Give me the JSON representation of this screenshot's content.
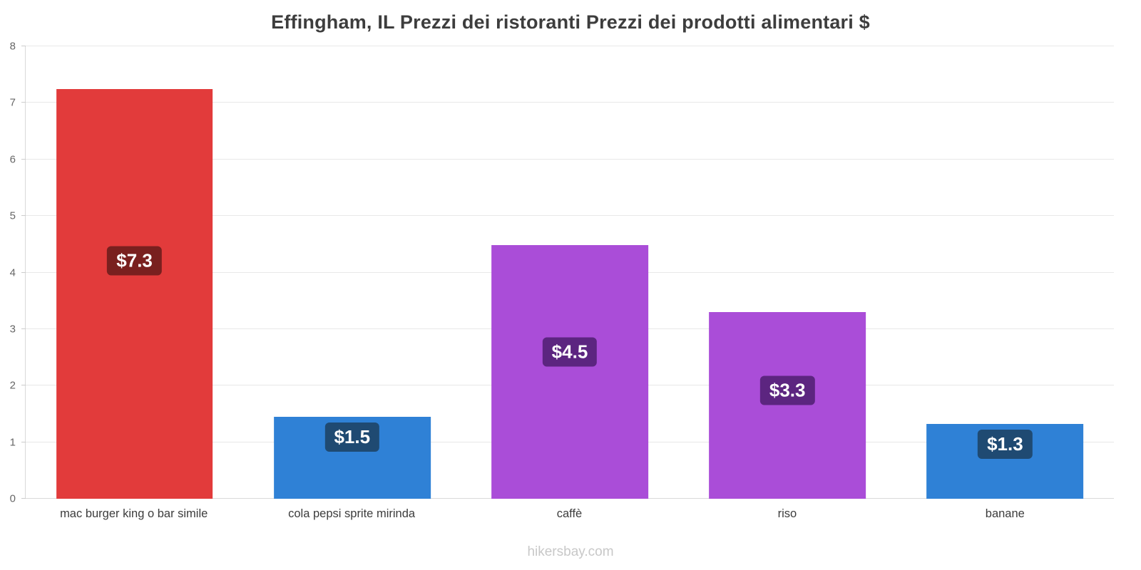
{
  "chart_data": {
    "type": "bar",
    "title": "Effingham, IL Prezzi dei ristoranti Prezzi dei prodotti alimentari $",
    "categories": [
      "mac burger king o bar simile",
      "cola pepsi sprite mirinda",
      "caffè",
      "riso",
      "banane"
    ],
    "values": [
      7.25,
      1.45,
      4.48,
      3.3,
      1.32
    ],
    "value_labels": [
      "$7.3",
      "$1.5",
      "$4.5",
      "$3.3",
      "$1.3"
    ],
    "bar_colors": [
      "#e23b3b",
      "#2f81d6",
      "#aa4dd8",
      "#aa4dd8",
      "#2f81d6"
    ],
    "badge_colors": [
      "#79201f",
      "#1f4a72",
      "#5c2580",
      "#5c2580",
      "#1f4a72"
    ],
    "ylim": [
      0,
      8
    ],
    "ytick_step": 1,
    "grid": "horizontal",
    "legend": "none",
    "xlabel": "",
    "ylabel": ""
  },
  "footer": {
    "watermark": "hikersbay.com"
  }
}
